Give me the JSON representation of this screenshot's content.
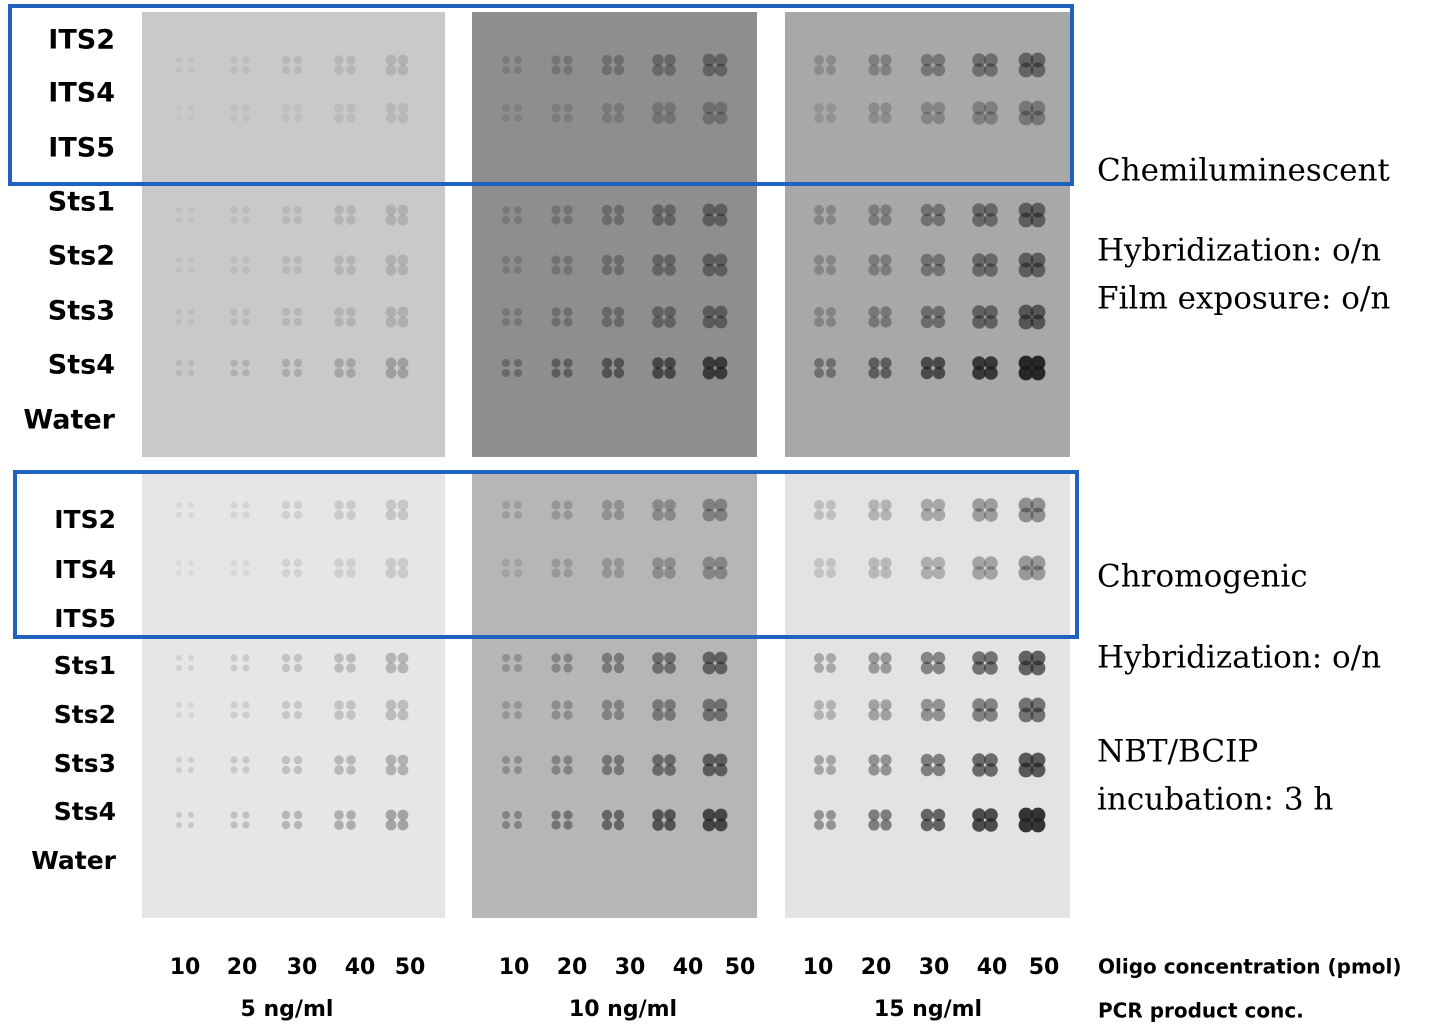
{
  "top_panel": {
    "row_labels": [
      "ITS2",
      "ITS4",
      "ITS5",
      "Sts1",
      "Sts2",
      "Sts3",
      "Sts4",
      "Water"
    ],
    "notes": [
      "Chemiluminescent",
      "Hybridization: o/n",
      "Film exposure: o/n"
    ]
  },
  "bottom_panel": {
    "row_labels": [
      "ITS2",
      "ITS4",
      "ITS5",
      "Sts1",
      "Sts2",
      "Sts3",
      "Sts4",
      "Water"
    ],
    "notes": [
      "Chromogenic",
      "Hybridization: o/n",
      "NBT/BCIP",
      "incubation: 3 h"
    ]
  },
  "groups": [
    {
      "label": "5 ng/ml",
      "oligo": [
        10,
        20,
        30,
        40,
        50
      ]
    },
    {
      "label": "10 ng/ml",
      "oligo": [
        10,
        20,
        30,
        40,
        50
      ]
    },
    {
      "label": "15 ng/ml",
      "oligo": [
        10,
        20,
        30,
        40,
        50
      ]
    }
  ],
  "oligo_title": "Oligo concentration (pmol)",
  "group_title": "PCR product conc."
}
